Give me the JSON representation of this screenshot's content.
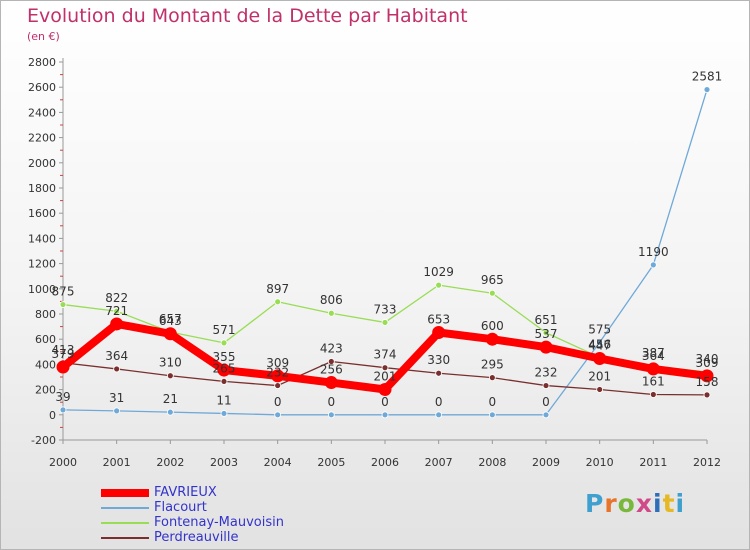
{
  "header": {
    "title": "Evolution du Montant de la Dette par Habitant",
    "subtitle": "(en €)"
  },
  "logo": {
    "text": "Proxiti"
  },
  "chart_data": {
    "type": "line",
    "title": "Evolution du Montant de la Dette par Habitant",
    "ylabel": "(en €)",
    "xlabel": "",
    "x": [
      2000,
      2001,
      2002,
      2003,
      2004,
      2005,
      2006,
      2007,
      2008,
      2009,
      2010,
      2011,
      2012
    ],
    "ylim": [
      -200,
      2800
    ],
    "yticks": [
      -200,
      0,
      200,
      400,
      600,
      800,
      1000,
      1200,
      1400,
      1600,
      1800,
      2000,
      2200,
      2400,
      2600,
      2800
    ],
    "grid": false,
    "legend_position": "bottom-left",
    "series": [
      {
        "name": "FAVRIEUX",
        "color": "#ff0000",
        "emphasis": true,
        "values": [
          379,
          721,
          643,
          355,
          309,
          256,
          201,
          653,
          600,
          537,
          447,
          364,
          309
        ],
        "labels": [
          "379",
          "721",
          "643",
          "355",
          "309",
          "256",
          "201",
          "653",
          "600",
          "537",
          "447",
          "364",
          "309"
        ]
      },
      {
        "name": "Flacourt",
        "color": "#6fa9d8",
        "emphasis": false,
        "values": [
          39,
          31,
          21,
          11,
          0,
          0,
          0,
          0,
          0,
          0,
          575,
          1190,
          2581
        ],
        "labels": [
          "39",
          "31",
          "21",
          "11",
          "0",
          "0",
          "0",
          "0",
          "0",
          "0",
          "575",
          "1190",
          "2581"
        ]
      },
      {
        "name": "Fontenay-Mauvoisin",
        "color": "#99dd55",
        "emphasis": false,
        "values": [
          875,
          822,
          657,
          571,
          897,
          806,
          733,
          1029,
          965,
          651,
          456,
          387,
          340
        ],
        "labels": [
          "875",
          "822",
          "657",
          "571",
          "897",
          "806",
          "733",
          "1029",
          "965",
          "651",
          "456",
          "387",
          "340"
        ]
      },
      {
        "name": "Perdreauville",
        "color": "#7a2f2f",
        "emphasis": false,
        "values": [
          413,
          364,
          310,
          265,
          232,
          423,
          374,
          330,
          295,
          232,
          201,
          161,
          158
        ],
        "labels": [
          "413",
          "364",
          "310",
          "265",
          "232",
          "423",
          "374",
          "330",
          "295",
          "232",
          "201",
          "161",
          "158"
        ]
      }
    ]
  }
}
